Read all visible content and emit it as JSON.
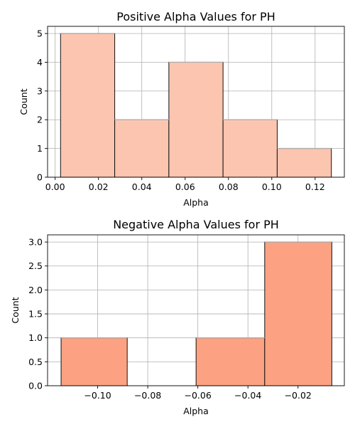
{
  "chart_data": [
    {
      "type": "bar",
      "title": "Positive Alpha Values for PH",
      "xlabel": "Alpha",
      "ylabel": "Count",
      "xlim": [
        -0.0035,
        0.1335
      ],
      "ylim": [
        0,
        5.25
      ],
      "xticks": [
        0.0,
        0.02,
        0.04,
        0.06,
        0.08,
        0.1,
        0.12
      ],
      "xtick_labels": [
        "0.00",
        "0.02",
        "0.04",
        "0.06",
        "0.08",
        "0.10",
        "0.12"
      ],
      "yticks": [
        0,
        1,
        2,
        3,
        4,
        5
      ],
      "ytick_labels": [
        "0",
        "1",
        "2",
        "3",
        "4",
        "5"
      ],
      "bin_edges": [
        0.0025,
        0.0275,
        0.0525,
        0.0775,
        0.1025,
        0.1275
      ],
      "values": [
        5,
        2,
        4,
        2,
        1
      ],
      "bar_color": "#fcc5b0",
      "edge_color": "#111111",
      "grid": true
    },
    {
      "type": "bar",
      "title": "Negative Alpha Values for PH",
      "xlabel": "Alpha",
      "ylabel": "Count",
      "xlim": [
        -0.12,
        -0.0015
      ],
      "ylim": [
        0,
        3.15
      ],
      "xticks": [
        -0.1,
        -0.08,
        -0.06,
        -0.04,
        -0.02
      ],
      "xtick_labels": [
        "−0.10",
        "−0.08",
        "−0.06",
        "−0.04",
        "−0.02"
      ],
      "yticks": [
        0,
        0.5,
        1.0,
        1.5,
        2.0,
        2.5,
        3.0
      ],
      "ytick_labels": [
        "0.0",
        "0.5",
        "1.0",
        "1.5",
        "2.0",
        "2.5",
        "3.0"
      ],
      "bin_edges": [
        -0.1146,
        -0.0882,
        -0.0607,
        -0.0333,
        -0.0065
      ],
      "values": [
        1,
        0,
        1,
        3
      ],
      "bar_color": "#fca282",
      "edge_color": "#111111",
      "grid": true
    }
  ]
}
